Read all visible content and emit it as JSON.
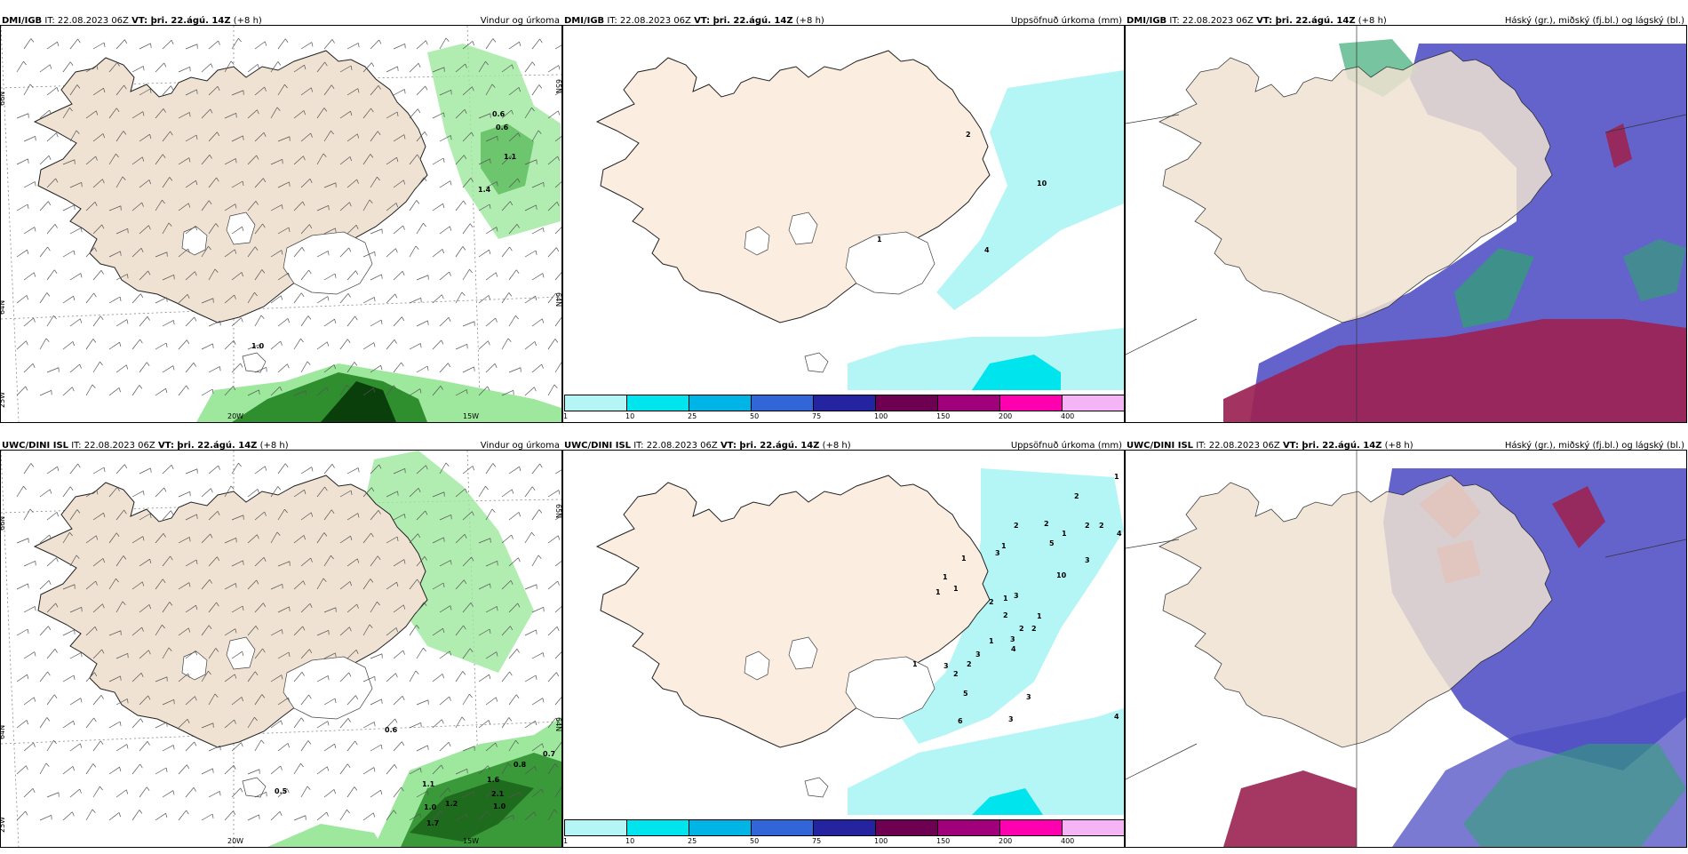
{
  "panels": [
    {
      "model": "DMI/IGB",
      "it": "IT: 22.08.2023 06Z",
      "vt": "VT: þri. 22.ágú. 14Z",
      "lead": "(+8 h)",
      "title": "Vindur og úrkoma",
      "kind": "wind",
      "labels": [
        "0.6",
        "0.6",
        "1.1",
        "1.4",
        "1.0"
      ],
      "axis": {
        "lat1": "66N",
        "lat2": "64N",
        "lon1": "25W",
        "lon2": "20W",
        "lon3": "15W",
        "lat1r": "65N",
        "lat2r": "64N"
      }
    },
    {
      "model": "DMI/IGB",
      "it": "IT: 22.08.2023 06Z",
      "vt": "VT: þri. 22.ágú. 14Z",
      "lead": "(+8 h)",
      "title": "Uppsöfnuð úrkoma (mm)",
      "kind": "precip",
      "labels": [
        "2",
        "10",
        "1",
        "4"
      ]
    },
    {
      "model": "DMI/IGB",
      "it": "IT: 22.08.2023 06Z",
      "vt": "VT: þri. 22.ágú. 14Z",
      "lead": "(+8 h)",
      "title": "Háský (gr.), miðský (fj.bl.) og lágský (bl.)",
      "kind": "cloud",
      "labels": []
    },
    {
      "model": "UWC/DINI ISL",
      "it": "IT: 22.08.2023 06Z",
      "vt": "VT: þri. 22.ágú. 14Z",
      "lead": "(+8 h)",
      "title": "Vindur og úrkoma",
      "kind": "wind",
      "labels": [
        "0.6",
        "0.5",
        "0.7",
        "0.8",
        "1.1",
        "1.6",
        "1.0",
        "1.2",
        "2.1",
        "1.0",
        "1.7"
      ],
      "axis": {
        "lat1": "66N",
        "lat2": "64N",
        "lon1": "25W",
        "lon2": "20W",
        "lon3": "15W",
        "lat1r": "65N",
        "lat2r": "64N"
      }
    },
    {
      "model": "UWC/DINI ISL",
      "it": "IT: 22.08.2023 06Z",
      "vt": "VT: þri. 22.ágú. 14Z",
      "lead": "(+8 h)",
      "title": "Uppsöfnuð úrkoma (mm)",
      "kind": "precip",
      "labels": [
        "1",
        "2",
        "2",
        "2",
        "2",
        "2",
        "4",
        "1",
        "5",
        "1",
        "3",
        "1",
        "3",
        "10",
        "1",
        "1",
        "1",
        "3",
        "1",
        "2",
        "2",
        "1",
        "2",
        "2",
        "3",
        "1",
        "4",
        "3",
        "3",
        "2",
        "1",
        "2",
        "5",
        "3",
        "6",
        "3",
        "4"
      ]
    },
    {
      "model": "UWC/DINI ISL",
      "it": "IT: 22.08.2023 06Z",
      "vt": "VT: þri. 22.ágú. 14Z",
      "lead": "(+8 h)",
      "title": "Háský (gr.), miðský (fj.bl.) og lágský (bl.)",
      "kind": "cloud",
      "labels": []
    }
  ],
  "colorbar": {
    "colors": [
      "#b4f5f5",
      "#00e4ee",
      "#00b4e6",
      "#3266d8",
      "#2424a0",
      "#6e0052",
      "#a0007a",
      "#ff00b0",
      "#f5b4f5"
    ],
    "ticks": [
      "1",
      "10",
      "25",
      "50",
      "75",
      "100",
      "150",
      "200",
      "400"
    ]
  },
  "palette": {
    "land": "#efe2d2",
    "ice": "#ffffff",
    "sea": "#ffffff",
    "precip_light": "#b4f5f5",
    "precip_mid": "#00e4ee",
    "cloud_high": "#9b2252",
    "cloud_mid": "#2ea56e",
    "cloud_low": "#4d4dc4",
    "rain_green": "#9ee89e",
    "rain_dark": "#1e6b1e"
  }
}
